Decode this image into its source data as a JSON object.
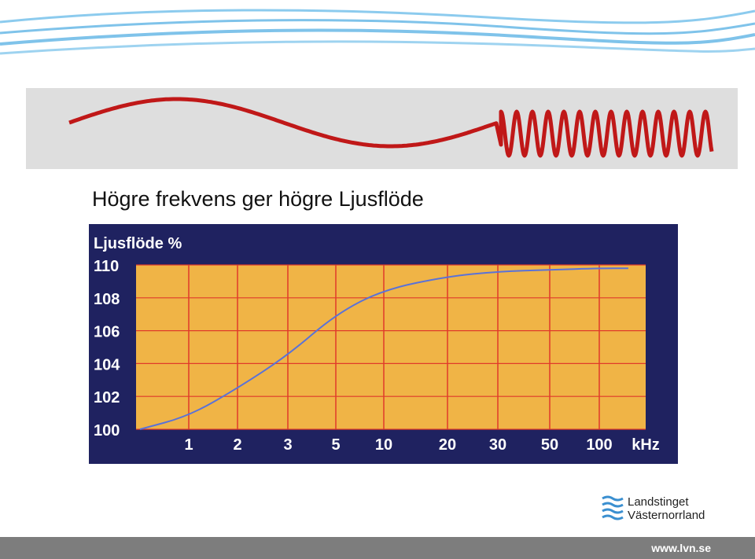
{
  "slide": {
    "title": "Högre frekvens ger högre Ljusflöde"
  },
  "colors": {
    "waves_top": "#7fc3ea",
    "panel_bg": "#dedede",
    "signal": "#c01818",
    "chart_bg": "#1f2260",
    "plot_bg": "#f0b446",
    "grid": "#e03a2a",
    "curve": "#5a72d8",
    "footer": "#7d7d7d"
  },
  "chart_data": {
    "type": "line",
    "ylabel": "Ljusflöde %",
    "xunit": "kHz",
    "x_tick_labels": [
      "1",
      "2",
      "3",
      "5",
      "10",
      "20",
      "30",
      "50",
      "100"
    ],
    "y_tick_labels": [
      "110",
      "108",
      "106",
      "104",
      "102",
      "100"
    ],
    "ylim": [
      100,
      110
    ],
    "xscale": "log",
    "grid": true,
    "series": [
      {
        "x": [
          0.5,
          1,
          2,
          3,
          5,
          10,
          20,
          30,
          50,
          100,
          150
        ],
        "y": [
          100.0,
          100.8,
          102.5,
          104.5,
          107.0,
          108.5,
          109.3,
          109.6,
          109.7,
          109.8,
          109.8
        ]
      }
    ]
  },
  "logo": {
    "line1": "Landstinget",
    "line2": "Västernorrland"
  },
  "footer": {
    "url": "www.lvn.se"
  }
}
